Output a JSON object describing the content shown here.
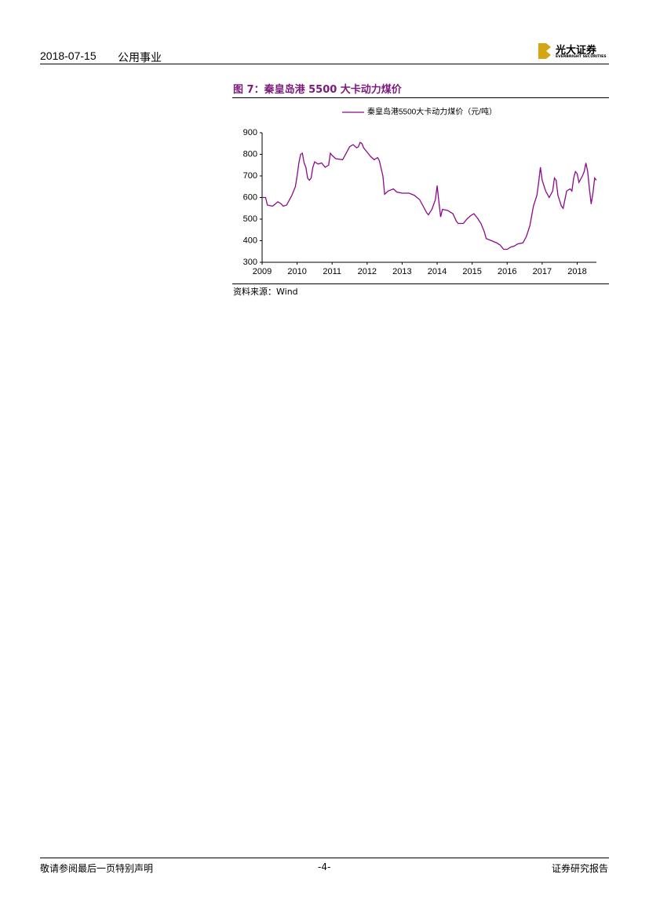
{
  "header": {
    "date": "2018-07-15",
    "sector": "公用事业",
    "logo_cn": "光大证券",
    "logo_en": "EVERBRIGHT SECURITIES"
  },
  "figure": {
    "title": "图 7：秦皇岛港 5500 大卡动力煤价",
    "source": "资料来源：Wind"
  },
  "chart_data": {
    "type": "line",
    "x": [
      2009.0,
      2009.1,
      2009.15,
      2009.3,
      2009.45,
      2009.55,
      2009.6,
      2009.7,
      2009.75,
      2009.85,
      2009.95,
      2010.0,
      2010.05,
      2010.1,
      2010.15,
      2010.2,
      2010.25,
      2010.3,
      2010.35,
      2010.4,
      2010.45,
      2010.5,
      2010.6,
      2010.7,
      2010.8,
      2010.9,
      2010.95,
      2011.0,
      2011.1,
      2011.3,
      2011.4,
      2011.5,
      2011.6,
      2011.7,
      2011.75,
      2011.8,
      2011.85,
      2011.9,
      2012.0,
      2012.1,
      2012.2,
      2012.3,
      2012.35,
      2012.45,
      2012.5,
      2012.6,
      2012.75,
      2012.85,
      2013.0,
      2013.2,
      2013.35,
      2013.5,
      2013.6,
      2013.7,
      2013.75,
      2013.85,
      2013.95,
      2014.0,
      2014.05,
      2014.1,
      2014.15,
      2014.3,
      2014.45,
      2014.55,
      2014.6,
      2014.75,
      2014.85,
      2014.95,
      2015.05,
      2015.15,
      2015.25,
      2015.35,
      2015.4,
      2015.55,
      2015.7,
      2015.8,
      2015.9,
      2016.0,
      2016.1,
      2016.2,
      2016.3,
      2016.45,
      2016.55,
      2016.65,
      2016.75,
      2016.85,
      2016.9,
      2016.95,
      2017.0,
      2017.1,
      2017.2,
      2017.3,
      2017.35,
      2017.4,
      2017.45,
      2017.55,
      2017.6,
      2017.7,
      2017.8,
      2017.85,
      2017.9,
      2017.95,
      2018.0,
      2018.05,
      2018.15,
      2018.2,
      2018.25,
      2018.3,
      2018.35,
      2018.4,
      2018.45,
      2018.5,
      2018.55
    ],
    "series": [
      {
        "name": "秦皇岛港5500大卡动力煤价（元/吨）",
        "color": "#8b0a8b",
        "values": [
          600,
          600,
          565,
          560,
          580,
          570,
          560,
          565,
          580,
          610,
          650,
          700,
          760,
          800,
          805,
          760,
          740,
          690,
          680,
          690,
          740,
          765,
          755,
          760,
          740,
          750,
          805,
          795,
          780,
          775,
          805,
          835,
          845,
          830,
          835,
          855,
          850,
          830,
          810,
          790,
          775,
          785,
          770,
          700,
          615,
          630,
          640,
          625,
          620,
          620,
          610,
          590,
          560,
          530,
          520,
          545,
          590,
          655,
          580,
          510,
          545,
          540,
          525,
          490,
          480,
          480,
          500,
          515,
          525,
          505,
          480,
          440,
          410,
          400,
          390,
          380,
          360,
          360,
          370,
          375,
          385,
          390,
          420,
          470,
          560,
          610,
          670,
          740,
          680,
          630,
          600,
          630,
          690,
          680,
          610,
          560,
          550,
          630,
          640,
          630,
          690,
          720,
          710,
          670,
          700,
          720,
          760,
          720,
          640,
          570,
          620,
          690,
          680
        ]
      }
    ],
    "xlim": [
      2009,
      2018.55
    ],
    "xticks": [
      2009,
      2010,
      2011,
      2012,
      2013,
      2014,
      2015,
      2016,
      2017,
      2018
    ],
    "ylim": [
      300,
      900
    ],
    "yticks": [
      300,
      400,
      500,
      600,
      700,
      800,
      900
    ],
    "grid": false,
    "legend": "top"
  },
  "footer": {
    "left": "敬请参阅最后一页特别声明",
    "page": "-4-",
    "right": "证券研究报告"
  }
}
